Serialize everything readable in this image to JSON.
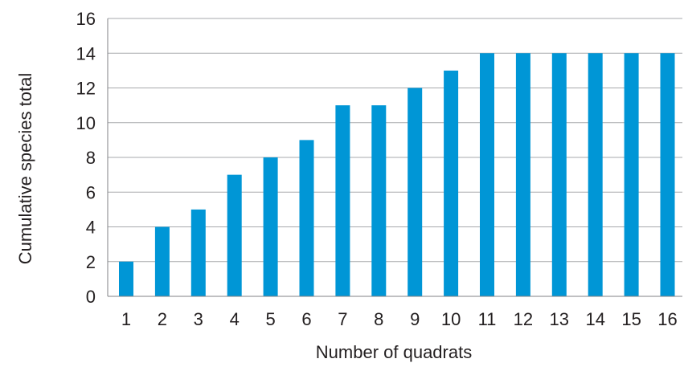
{
  "chart_data": {
    "type": "bar",
    "title": "",
    "xlabel": "Number of quadrats",
    "ylabel": "Cumulative species total",
    "categories": [
      "1",
      "2",
      "3",
      "4",
      "5",
      "6",
      "7",
      "8",
      "9",
      "10",
      "11",
      "12",
      "13",
      "14",
      "15",
      "16"
    ],
    "values": [
      2,
      4,
      5,
      7,
      8,
      9,
      11,
      11,
      12,
      13,
      14,
      14,
      14,
      14,
      14,
      14
    ],
    "ylim": [
      0,
      16
    ],
    "yticks": [
      "0",
      "2",
      "4",
      "6",
      "8",
      "10",
      "12",
      "14",
      "16"
    ],
    "grid": true,
    "legend": "none",
    "bar_color": "#0096d6"
  }
}
